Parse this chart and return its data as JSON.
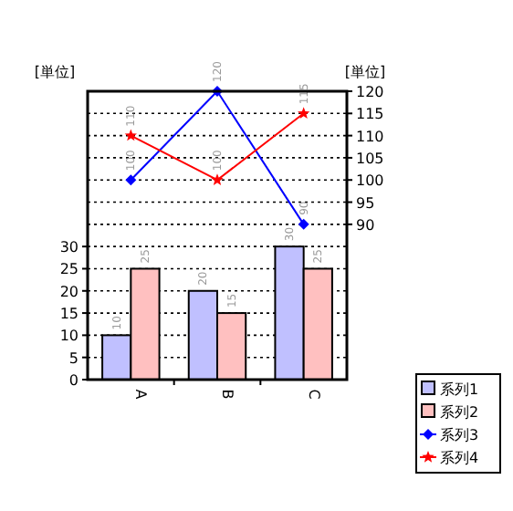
{
  "chart_data": {
    "type": "bar",
    "ylabel": "[単位]",
    "y2label": "[単位]",
    "categories": [
      "A",
      "B",
      "C"
    ],
    "series": [
      {
        "name": "系列1",
        "color": "#c0c0ff",
        "values": [
          10,
          20,
          30
        ]
      },
      {
        "name": "系列2",
        "color": "#ffc0c0",
        "values": [
          25,
          15,
          25
        ]
      },
      {
        "name": "系列3",
        "type": "line",
        "axis": "y2",
        "marker": "diamond",
        "color": "#0000ff",
        "values": [
          100,
          120,
          90
        ]
      },
      {
        "name": "系列4",
        "type": "line",
        "axis": "y2",
        "marker": "star",
        "color": "#ff0000",
        "values": [
          110,
          100,
          115
        ]
      }
    ],
    "ylim": [
      0,
      65
    ],
    "yticks": [
      0,
      5,
      10,
      15,
      20,
      25,
      30
    ],
    "y2lim": [
      55,
      120
    ],
    "y2ticks": [
      90,
      95,
      100,
      105,
      110,
      115,
      120
    ],
    "grid": "y",
    "data_labels": true,
    "legend": "bottom right"
  }
}
